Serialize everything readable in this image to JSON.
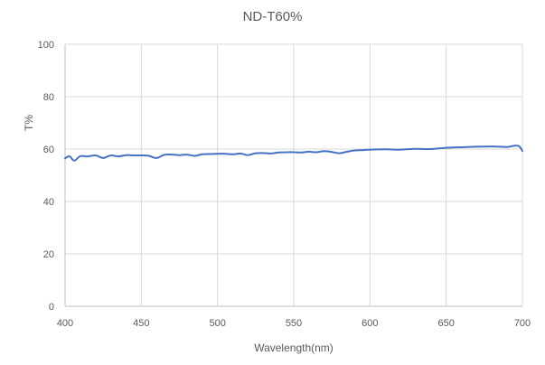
{
  "chart_data": {
    "type": "line",
    "title": "ND-T60%",
    "xlabel": "Wavelength(nm)",
    "ylabel": "T%",
    "xlim": [
      400,
      700
    ],
    "ylim": [
      0,
      100
    ],
    "xticks": [
      400,
      450,
      500,
      550,
      600,
      650,
      700
    ],
    "yticks": [
      0,
      20,
      40,
      60,
      80,
      100
    ],
    "grid": true,
    "legend": null,
    "series": [
      {
        "name": "ND-T60%",
        "color": "#4472C4",
        "x": [
          400,
          403,
          406,
          410,
          415,
          420,
          425,
          430,
          435,
          440,
          445,
          450,
          455,
          460,
          465,
          470,
          475,
          480,
          485,
          490,
          495,
          500,
          505,
          510,
          515,
          520,
          525,
          530,
          535,
          540,
          545,
          550,
          555,
          560,
          565,
          570,
          575,
          580,
          585,
          590,
          595,
          600,
          610,
          620,
          630,
          640,
          650,
          660,
          670,
          680,
          690,
          695,
          698,
          700
        ],
        "values": [
          56.5,
          57.2,
          55.6,
          57.3,
          57.2,
          57.6,
          56.6,
          57.6,
          57.2,
          57.7,
          57.6,
          57.6,
          57.4,
          56.6,
          57.8,
          57.9,
          57.7,
          57.9,
          57.4,
          58.0,
          58.1,
          58.2,
          58.2,
          58.0,
          58.3,
          57.7,
          58.4,
          58.5,
          58.3,
          58.7,
          58.8,
          58.8,
          58.7,
          59.0,
          58.8,
          59.2,
          58.9,
          58.4,
          59.0,
          59.5,
          59.6,
          59.8,
          59.9,
          59.8,
          60.1,
          60.0,
          60.5,
          60.7,
          60.9,
          61.0,
          60.8,
          61.3,
          61.0,
          59.3
        ]
      }
    ]
  }
}
